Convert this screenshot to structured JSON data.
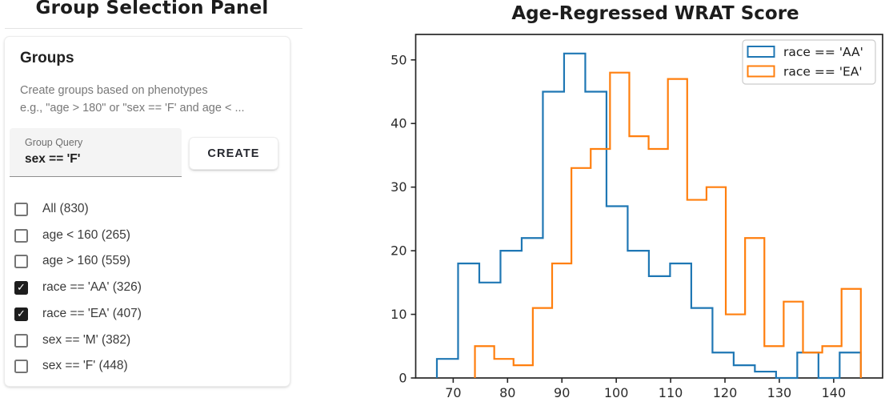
{
  "left_panel": {
    "title": "Group Selection Panel",
    "card": {
      "heading": "Groups",
      "description_line1": "Create groups based on phenotypes",
      "description_line2": "e.g., \"age > 180\" or \"sex == 'F' and age < ...",
      "input": {
        "label": "Group Query",
        "value": "sex == 'F'"
      },
      "create_button_label": "CREATE",
      "groups": [
        {
          "label": "All (830)",
          "checked": false
        },
        {
          "label": "age < 160 (265)",
          "checked": false
        },
        {
          "label": "age > 160 (559)",
          "checked": false
        },
        {
          "label": "race == 'AA' (326)",
          "checked": true
        },
        {
          "label": "race == 'EA' (407)",
          "checked": true
        },
        {
          "label": "sex == 'M' (382)",
          "checked": false
        },
        {
          "label": "sex == 'F' (448)",
          "checked": false
        }
      ]
    }
  },
  "chart_data": {
    "type": "histogram_step",
    "title": "Age-Regressed WRAT Score",
    "xlabel": "",
    "ylabel": "",
    "xlim": [
      63.1,
      149.0
    ],
    "ylim": [
      0,
      54
    ],
    "x_ticks": [
      70,
      80,
      90,
      100,
      110,
      120,
      130,
      140
    ],
    "y_ticks": [
      0,
      10,
      20,
      30,
      40,
      50
    ],
    "grid": false,
    "legend_position": "upper right",
    "frame_color": "#262626",
    "series": [
      {
        "name": "race == 'AA'",
        "color": "#1f77b4",
        "bin_start": 67.0,
        "bin_width": 3.9,
        "counts": [
          3,
          18,
          15,
          20,
          22,
          45,
          51,
          45,
          27,
          20,
          16,
          18,
          11,
          4,
          2,
          1,
          0,
          4,
          0,
          4
        ]
      },
      {
        "name": "race == 'EA'",
        "color": "#ff7f0e",
        "bin_start": 74.0,
        "bin_width": 3.55,
        "counts": [
          5,
          3,
          2,
          11,
          18,
          33,
          36,
          48,
          38,
          36,
          47,
          28,
          30,
          10,
          22,
          5,
          12,
          4,
          5,
          14
        ]
      }
    ]
  }
}
